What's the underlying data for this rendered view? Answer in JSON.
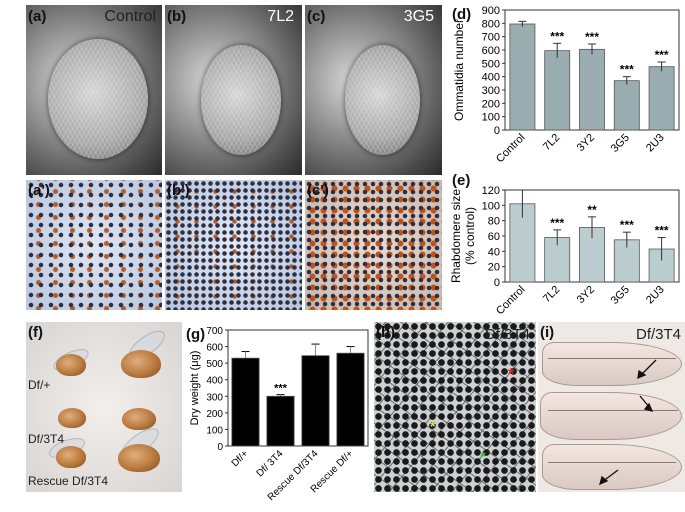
{
  "panel_labels": {
    "a": "(a)",
    "b": "(b)",
    "c": "(c)",
    "d": "(d)",
    "e": "(e)",
    "a2": "(a')",
    "b2": "(b')",
    "c2": "(c')",
    "f": "(f)",
    "g": "(g)",
    "h": "(h)",
    "i": "(i)"
  },
  "sem_titles": {
    "a": "Control",
    "b": "7L2",
    "c": "3G5"
  },
  "fly_labels": [
    "Df/+",
    "Df/3T4",
    "Rescue Df/3T4"
  ],
  "h_title": "Df/3T4",
  "i_title": "Df/3T4",
  "chart_data": [
    {
      "id": "d",
      "type": "bar",
      "categories": [
        "Control",
        "7L2",
        "3Y2",
        "3G5",
        "2U3"
      ],
      "values": [
        795,
        595,
        605,
        370,
        475
      ],
      "errors": [
        20,
        55,
        40,
        30,
        35
      ],
      "annotations": [
        "",
        "***",
        "***",
        "***",
        "***"
      ],
      "ylabel": "Ommatidia number",
      "ylim": [
        0,
        900
      ],
      "yticks": [
        "0",
        "100",
        "200",
        "300",
        "400",
        "500",
        "600",
        "700",
        "800",
        "900"
      ],
      "bar_color": "#9aadb0"
    },
    {
      "id": "e",
      "type": "bar",
      "categories": [
        "Control",
        "7L2",
        "3Y2",
        "3G5",
        "2U3"
      ],
      "values": [
        102,
        58,
        71,
        55,
        43
      ],
      "errors": [
        18,
        10,
        14,
        10,
        15
      ],
      "annotations": [
        "",
        "***",
        "**",
        "***",
        "***"
      ],
      "ylabel_lines": [
        "Rhabdomere size",
        "(% control)"
      ],
      "ylim": [
        0,
        120
      ],
      "yticks": [
        "0",
        "20",
        "40",
        "60",
        "80",
        "100",
        "120"
      ],
      "bar_color": "#bccdd0"
    },
    {
      "id": "g",
      "type": "bar",
      "categories": [
        "Df/+",
        "Df/ 3T4",
        "Rescue Df/3T4",
        "Rescue Df/+"
      ],
      "values": [
        530,
        300,
        545,
        560
      ],
      "errors": [
        40,
        10,
        70,
        40
      ],
      "annotations": [
        "",
        "***",
        "",
        ""
      ],
      "ylabel": "Dry weight (μg)",
      "ylim": [
        0,
        700
      ],
      "yticks": [
        "0",
        "100",
        "200",
        "300",
        "400",
        "500",
        "600",
        "700"
      ],
      "bar_color": "#000000"
    }
  ]
}
